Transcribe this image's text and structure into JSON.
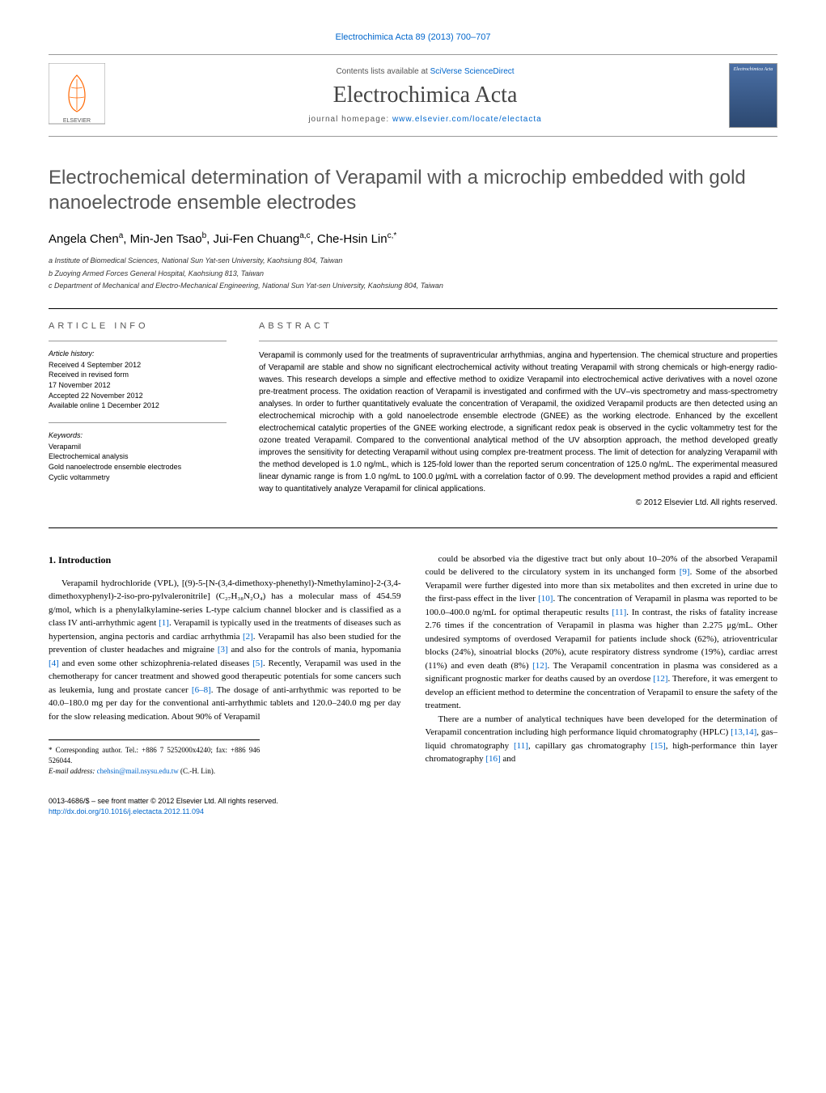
{
  "header": {
    "citation": "Electrochimica Acta 89 (2013) 700–707",
    "contents_line_prefix": "Contents lists available at ",
    "contents_link": "SciVerse ScienceDirect",
    "journal_name": "Electrochimica Acta",
    "homepage_prefix": "journal homepage: ",
    "homepage_link": "www.elsevier.com/locate/electacta",
    "cover_label": "Electrochimica Acta"
  },
  "title": "Electrochemical determination of Verapamil with a microchip embedded with gold nanoelectrode ensemble electrodes",
  "authors_html": "Angela Chen<sup>a</sup>, Min-Jen Tsao<sup>b</sup>, Jui-Fen Chuang<sup>a,c</sup>, Che-Hsin Lin<sup>c,*</sup>",
  "affiliations": [
    "a Institute of Biomedical Sciences, National Sun Yat-sen University, Kaohsiung 804, Taiwan",
    "b Zuoying Armed Forces General Hospital, Kaohsiung 813, Taiwan",
    "c Department of Mechanical and Electro-Mechanical Engineering, National Sun Yat-sen University, Kaohsiung 804, Taiwan"
  ],
  "info": {
    "heading": "ARTICLE INFO",
    "history_label": "Article history:",
    "history": [
      "Received 4 September 2012",
      "Received in revised form",
      "17 November 2012",
      "Accepted 22 November 2012",
      "Available online 1 December 2012"
    ],
    "keywords_label": "Keywords:",
    "keywords": [
      "Verapamil",
      "Electrochemical analysis",
      "Gold nanoelectrode ensemble electrodes",
      "Cyclic voltammetry"
    ]
  },
  "abstract": {
    "heading": "ABSTRACT",
    "text": "Verapamil is commonly used for the treatments of supraventricular arrhythmias, angina and hypertension. The chemical structure and properties of Verapamil are stable and show no significant electrochemical activity without treating Verapamil with strong chemicals or high-energy radio-waves. This research develops a simple and effective method to oxidize Verapamil into electrochemical active derivatives with a novel ozone pre-treatment process. The oxidation reaction of Verapamil is investigated and confirmed with the UV–vis spectrometry and mass-spectrometry analyses. In order to further quantitatively evaluate the concentration of Verapamil, the oxidized Verapamil products are then detected using an electrochemical microchip with a gold nanoelectrode ensemble electrode (GNEE) as the working electrode. Enhanced by the excellent electrochemical catalytic properties of the GNEE working electrode, a significant redox peak is observed in the cyclic voltammetry test for the ozone treated Verapamil. Compared to the conventional analytical method of the UV absorption approach, the method developed greatly improves the sensitivity for detecting Verapamil without using complex pre-treatment process. The limit of detection for analyzing Verapamil with the method developed is 1.0 ng/mL, which is 125-fold lower than the reported serum concentration of 125.0 ng/mL. The experimental measured linear dynamic range is from 1.0 ng/mL to 100.0 μg/mL with a correlation factor of 0.99. The development method provides a rapid and efficient way to quantitatively analyze Verapamil for clinical applications.",
    "copyright": "© 2012 Elsevier Ltd. All rights reserved."
  },
  "body": {
    "section_heading": "1. Introduction",
    "col1": "Verapamil hydrochloride (VPL), [(9)-5-[N-(3,4-dimethoxy-phenethyl)-Nmethylamino]-2-(3,4-dimethoxyphenyl)-2-iso-pro-pylvaleronitrile] (C₂₇H₃₈N₂O₄) has a molecular mass of 454.59 g/mol, which is a phenylalkylamine-series L-type calcium channel blocker and is classified as a class IV anti-arrhythmic agent [1]. Verapamil is typically used in the treatments of diseases such as hypertension, angina pectoris and cardiac arrhythmia [2]. Verapamil has also been studied for the prevention of cluster headaches and migraine [3] and also for the controls of mania, hypomania [4] and even some other schizophrenia-related diseases [5]. Recently, Verapamil was used in the chemotherapy for cancer treatment and showed good therapeutic potentials for some cancers such as leukemia, lung and prostate cancer [6–8]. The dosage of anti-arrhythmic was reported to be 40.0–180.0 mg per day for the conventional anti-arrhythmic tablets and 120.0–240.0 mg per day for the slow releasing medication. About 90% of Verapamil",
    "col2a": "could be absorbed via the digestive tract but only about 10–20% of the absorbed Verapamil could be delivered to the circulatory system in its unchanged form [9]. Some of the absorbed Verapamil were further digested into more than six metabolites and then excreted in urine due to the first-pass effect in the liver [10]. The concentration of Verapamil in plasma was reported to be 100.0–400.0 ng/mL for optimal therapeutic results [11]. In contrast, the risks of fatality increase 2.76 times if the concentration of Verapamil in plasma was higher than 2.275 μg/mL. Other undesired symptoms of overdosed Verapamil for patients include shock (62%), atrioventricular blocks (24%), sinoatrial blocks (20%), acute respiratory distress syndrome (19%), cardiac arrest (11%) and even death (8%) [12]. The Verapamil concentration in plasma was considered as a significant prognostic marker for deaths caused by an overdose [12]. Therefore, it was emergent to develop an efficient method to determine the concentration of Verapamil to ensure the safety of the treatment.",
    "col2b": "There are a number of analytical techniques have been developed for the determination of Verapamil concentration including high performance liquid chromatography (HPLC) [13,14], gas–liquid chromatography [11], capillary gas chromatography [15], high-performance thin layer chromatography [16] and"
  },
  "footnote": {
    "corr": "* Corresponding author. Tel.: +886 7 5252000x4240; fax: +886 946 526044.",
    "email_label": "E-mail address: ",
    "email": "chehsin@mail.nsysu.edu.tw",
    "email_suffix": " (C.-H. Lin)."
  },
  "bottom": {
    "issn": "0013-4686/$ – see front matter © 2012 Elsevier Ltd. All rights reserved.",
    "doi": "http://dx.doi.org/10.1016/j.electacta.2012.11.094"
  },
  "colors": {
    "link": "#0066cc",
    "heading_gray": "#555555",
    "cover_top": "#4a6fa5",
    "cover_bottom": "#2c4870",
    "elsevier_orange": "#ff6600"
  }
}
